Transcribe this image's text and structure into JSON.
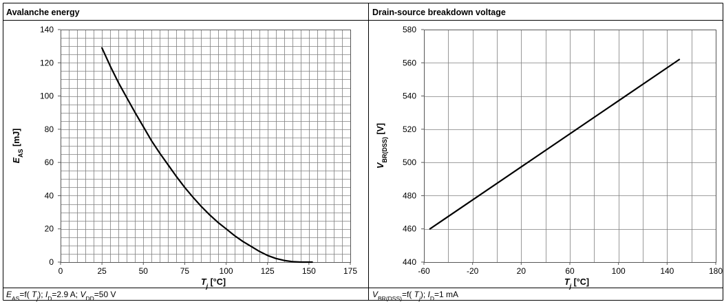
{
  "panels": [
    {
      "header": "Avalanche energy",
      "footer": {
        "parts": [
          {
            "t": "E",
            "i": true
          },
          {
            "t": "AS",
            "sub": true
          },
          {
            "t": "=f( "
          },
          {
            "t": "T",
            "i": true
          },
          {
            "t": "j",
            "sub": true,
            "i": true
          },
          {
            "t": "); "
          },
          {
            "t": "I",
            "i": true
          },
          {
            "t": "D",
            "sub": true
          },
          {
            "t": "=2.9 A; "
          },
          {
            "t": "V",
            "i": true
          },
          {
            "t": "DD",
            "sub": true
          },
          {
            "t": "=50 V"
          }
        ]
      },
      "xlabel_parts": [
        {
          "t": "T",
          "i": true
        },
        {
          "t": "j",
          "sub": true,
          "i": true
        },
        {
          "t": " [°C]"
        }
      ],
      "ylabel_parts": [
        {
          "t": "E",
          "i": true
        },
        {
          "t": "AS",
          "sub": true
        },
        {
          "t": " [mJ]"
        }
      ]
    },
    {
      "header": "Drain-source breakdown voltage",
      "footer": {
        "parts": [
          {
            "t": "V",
            "i": true
          },
          {
            "t": "BR(DSS)",
            "sub": true
          },
          {
            "t": "=f( "
          },
          {
            "t": "T",
            "i": true
          },
          {
            "t": "j",
            "sub": true,
            "i": true
          },
          {
            "t": "); "
          },
          {
            "t": "I",
            "i": true
          },
          {
            "t": "D",
            "sub": true
          },
          {
            "t": "=1 mA"
          }
        ]
      },
      "xlabel_parts": [
        {
          "t": "T",
          "i": true
        },
        {
          "t": "j",
          "sub": true,
          "i": true
        },
        {
          "t": " [°C]"
        }
      ],
      "ylabel_parts": [
        {
          "t": "V",
          "i": true
        },
        {
          "t": "BR(DSS)",
          "sub": true
        },
        {
          "t": " [V]"
        }
      ]
    }
  ],
  "chart_data": [
    {
      "type": "line",
      "title": "Avalanche energy",
      "xlabel": "Tj [°C]",
      "ylabel": "EAS [mJ]",
      "xlim": [
        0,
        175
      ],
      "ylim": [
        0,
        140
      ],
      "x_ticks": [
        0,
        25,
        50,
        75,
        100,
        125,
        150,
        175
      ],
      "y_ticks": [
        0,
        20,
        40,
        60,
        80,
        100,
        120,
        140
      ],
      "minor_x_step": 5,
      "minor_y_step": 5,
      "grid": true,
      "series": [
        {
          "x": [
            25,
            30,
            35,
            40,
            45,
            50,
            55,
            60,
            65,
            70,
            75,
            80,
            85,
            90,
            95,
            100,
            105,
            110,
            115,
            120,
            125,
            130,
            135,
            140,
            145,
            150,
            152
          ],
          "y": [
            129,
            118,
            108,
            99,
            90,
            81.5,
            73,
            65.5,
            58.5,
            51.5,
            45,
            39,
            33.5,
            28.5,
            24,
            20,
            16,
            12.5,
            9.5,
            6.5,
            4,
            2.2,
            1,
            0.3,
            0,
            0,
            0
          ]
        }
      ]
    },
    {
      "type": "line",
      "title": "Drain-source breakdown voltage",
      "xlabel": "Tj [°C]",
      "ylabel": "VBR(DSS) [V]",
      "xlim": [
        -60,
        180
      ],
      "ylim": [
        440,
        580
      ],
      "x_ticks": [
        -60,
        -20,
        20,
        60,
        100,
        140,
        180
      ],
      "y_ticks": [
        440,
        460,
        480,
        500,
        520,
        540,
        560,
        580
      ],
      "minor_x_step": 20,
      "grid": true,
      "series": [
        {
          "x": [
            -55,
            150
          ],
          "y": [
            460,
            562
          ]
        }
      ]
    }
  ]
}
